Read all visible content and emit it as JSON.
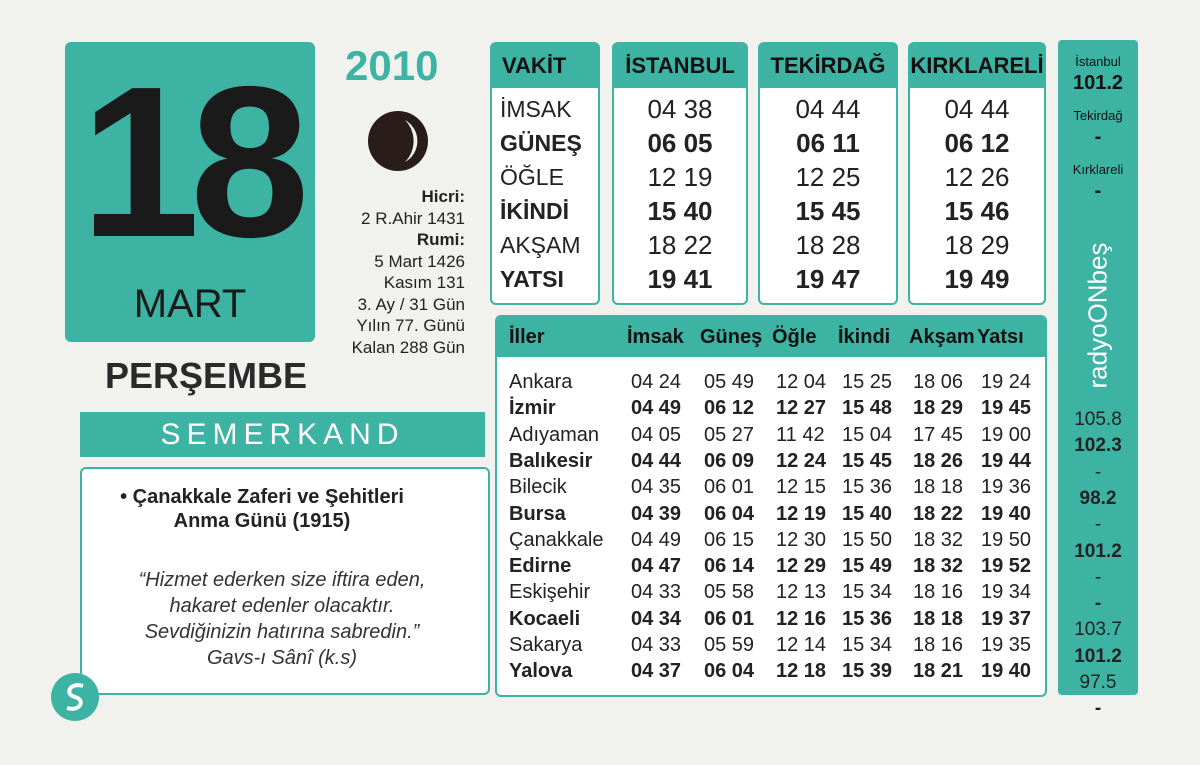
{
  "date": {
    "day": "18",
    "month": "MART",
    "year": "2010",
    "weekday": "PERŞEMBE"
  },
  "info": {
    "hijri_label": "Hicri:",
    "hijri": "2 R.Ahir 1431",
    "rumi_label": "Rumi:",
    "rumi": "5 Mart 1426",
    "lines": [
      "Kasım 131",
      "3. Ay / 31 Gün",
      "Yılın 77. Günü",
      "Kalan 288 Gün"
    ]
  },
  "brand": "SEMERKAND",
  "note": {
    "event": "Çanakkale Zaferi ve Şehitleri Anma Günü (1915)",
    "quote": [
      "“Hizmet ederken size iftira eden,",
      "hakaret edenler olacaktır.",
      "Sevdiğinizin hatırına sabredin.”"
    ],
    "author": "Gavs-ı Sânî (k.s)"
  },
  "vakit": {
    "header": "VAKİT",
    "labels": [
      "İMSAK",
      "GÜNEŞ",
      "ÖĞLE",
      "İKİNDİ",
      "AKŞAM",
      "YATSI"
    ],
    "cities": [
      {
        "name": "İSTANBUL",
        "times": [
          "04 38",
          "06 05",
          "12 19",
          "15 40",
          "18 22",
          "19 41"
        ]
      },
      {
        "name": "TEKİRDAĞ",
        "times": [
          "04 44",
          "06 11",
          "12 25",
          "15 45",
          "18 28",
          "19 47"
        ]
      },
      {
        "name": "KIRKLARELİ",
        "times": [
          "04 44",
          "06 12",
          "12 26",
          "15 46",
          "18 29",
          "19 49"
        ]
      }
    ]
  },
  "table": {
    "header": [
      "İller",
      "İmsak",
      "Güneş",
      "Öğle",
      "İkindi",
      "Akşam",
      "Yatsı"
    ],
    "rows": [
      [
        "Ankara",
        "04 24",
        "05 49",
        "12 04",
        "15 25",
        "18 06",
        "19 24"
      ],
      [
        "İzmir",
        "04 49",
        "06 12",
        "12 27",
        "15 48",
        "18 29",
        "19 45"
      ],
      [
        "Adıyaman",
        "04 05",
        "05 27",
        "11 42",
        "15 04",
        "17 45",
        "19 00"
      ],
      [
        "Balıkesir",
        "04 44",
        "06 09",
        "12 24",
        "15 45",
        "18 26",
        "19 44"
      ],
      [
        "Bilecik",
        "04 35",
        "06 01",
        "12 15",
        "15 36",
        "18 18",
        "19 36"
      ],
      [
        "Bursa",
        "04 39",
        "06 04",
        "12 19",
        "15 40",
        "18 22",
        "19 40"
      ],
      [
        "Çanakkale",
        "04 49",
        "06 15",
        "12 30",
        "15 50",
        "18 32",
        "19 50"
      ],
      [
        "Edirne",
        "04 47",
        "06 14",
        "12 29",
        "15 49",
        "18 32",
        "19 52"
      ],
      [
        "Eskişehir",
        "04 33",
        "05 58",
        "12 13",
        "15 34",
        "18 16",
        "19 34"
      ],
      [
        "Kocaeli",
        "04 34",
        "06 01",
        "12 16",
        "15 36",
        "18 18",
        "19 37"
      ],
      [
        "Sakarya",
        "04 33",
        "05 59",
        "12 14",
        "15 34",
        "18 16",
        "19 35"
      ],
      [
        "Yalova",
        "04 37",
        "06 04",
        "12 18",
        "15 39",
        "18 21",
        "19 40"
      ]
    ]
  },
  "radio": {
    "brand": "radyoONbeş",
    "top": [
      {
        "city": "İstanbul",
        "freq": "101.2"
      },
      {
        "city": "Tekirdağ",
        "freq": "-"
      },
      {
        "city": "Kırklareli",
        "freq": "-"
      }
    ],
    "freqs": [
      "105.8",
      "102.3",
      "-",
      "98.2",
      "-",
      "101.2",
      "-",
      "-",
      "103.7",
      "101.2",
      "97.5",
      "-"
    ]
  }
}
